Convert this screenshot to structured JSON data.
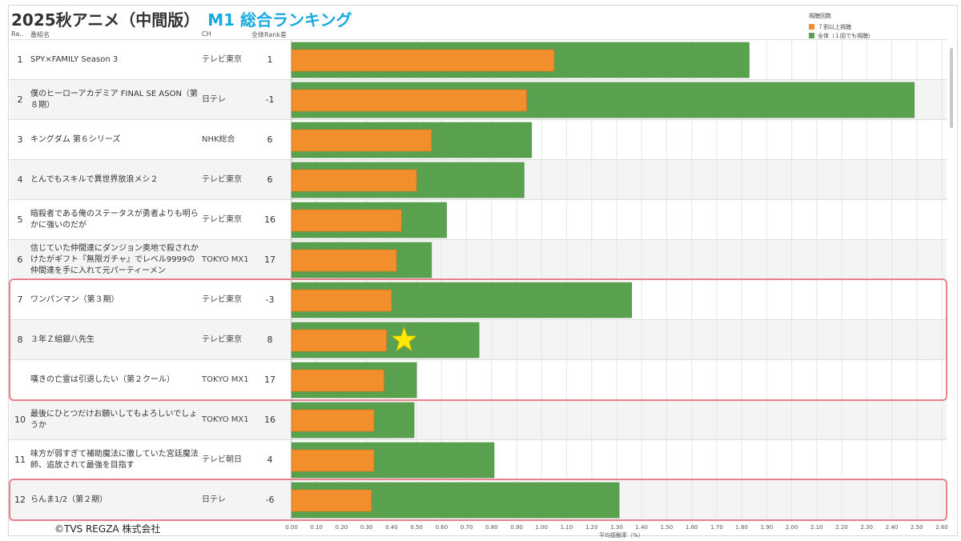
{
  "title": {
    "part1": "2025秋アニメ（中間版）",
    "part2": "M1 総合ランキング"
  },
  "legend": {
    "title": "視聴回数",
    "items": [
      {
        "label": "７割以上視聴",
        "color": "#f28e2b"
      },
      {
        "label": "全体（１回でも視聴）",
        "color": "#59a14f"
      }
    ]
  },
  "headers": {
    "rank": "Ra..",
    "name": "番組名",
    "ch": "CH",
    "diff": "全体Rank差"
  },
  "rows": [
    {
      "rank": "1",
      "name": "SPY×FAMILY Season 3",
      "ch": "テレビ東京",
      "diff": "1"
    },
    {
      "rank": "2",
      "name": "僕のヒーローアカデミア FINAL SE ASON（第８期）",
      "ch": "日テレ",
      "diff": "-1"
    },
    {
      "rank": "3",
      "name": "キングダム 第６シリーズ",
      "ch": "NHK総合",
      "diff": "6"
    },
    {
      "rank": "4",
      "name": "とんでもスキルで異世界放浪メシ２",
      "ch": "テレビ東京",
      "diff": "6"
    },
    {
      "rank": "5",
      "name": "暗殺者である俺のステータスが勇者よりも明らかに強いのだが",
      "ch": "テレビ東京",
      "diff": "16"
    },
    {
      "rank": "6",
      "name": "信じていた仲間達にダンジョン奥地で殺されかけたがギフト『無限ガチャ』でレベル9999の仲間達を手に入れて元パーティーメン",
      "ch": "TOKYO MX1",
      "diff": "17"
    },
    {
      "rank": "7",
      "name": "ワンパンマン（第３期）",
      "ch": "テレビ東京",
      "diff": "-3"
    },
    {
      "rank": "8",
      "name": "３年Ｚ組銀八先生",
      "ch": "テレビ東京",
      "diff": "8"
    },
    {
      "rank": "",
      "name": "嘆きの亡霊は引退したい（第２クール）",
      "ch": "TOKYO MX1",
      "diff": "17"
    },
    {
      "rank": "10",
      "name": "最後にひとつだけお願いしてもよろしいでしょうか",
      "ch": "TOKYO MX1",
      "diff": "16"
    },
    {
      "rank": "11",
      "name": "味方が弱すぎて補助魔法に徹していた宮廷魔法師、追放されて最強を目指す",
      "ch": "テレビ朝日",
      "diff": "4"
    },
    {
      "rank": "12",
      "name": "らんま1/2（第２期）",
      "ch": "日テレ",
      "diff": "-6"
    }
  ],
  "chart_data": {
    "type": "bar",
    "title": "2025秋アニメ（中間版） M1 総合ランキング",
    "xlabel": "平均接触率（%）",
    "ylabel": "",
    "orientation": "horizontal",
    "xlim": [
      0,
      2.6
    ],
    "ticks": [
      "0.00",
      "0.10",
      "0.20",
      "0.30",
      "0.40",
      "0.50",
      "0.60",
      "0.70",
      "0.80",
      "0.90",
      "1.00",
      "1.10",
      "1.20",
      "1.30",
      "1.40",
      "1.50",
      "1.60",
      "1.70",
      "1.80",
      "1.90",
      "2.00",
      "2.10",
      "2.20",
      "2.30",
      "2.40",
      "2.50",
      "2.60"
    ],
    "categories": [
      "SPY×FAMILY Season 3",
      "僕のヒーローアカデミア FINAL SEASON（第８期）",
      "キングダム 第６シリーズ",
      "とんでもスキルで異世界放浪メシ２",
      "暗殺者である俺のステータスが勇者よりも明らかに強いのだが",
      "信じていた仲間達にダンジョン奥地で殺されかけたが…",
      "ワンパンマン（第３期）",
      "３年Ｚ組銀八先生",
      "嘆きの亡霊は引退したい（第２クール）",
      "最後にひとつだけお願いしてもよろしいでしょうか",
      "味方が弱すぎて補助魔法に徹していた宮廷魔法師、追放されて最強を目指す",
      "らんま1/2（第２期）"
    ],
    "series": [
      {
        "name": "全体（１回でも視聴）",
        "color": "#59a14f",
        "values": [
          1.83,
          2.49,
          0.96,
          0.93,
          0.62,
          0.56,
          1.36,
          0.75,
          0.5,
          0.49,
          0.81,
          1.31
        ]
      },
      {
        "name": "７割以上視聴",
        "color": "#f28e2b",
        "values": [
          1.05,
          0.94,
          0.56,
          0.5,
          0.44,
          0.42,
          0.4,
          0.38,
          0.37,
          0.33,
          0.33,
          0.32
        ]
      }
    ],
    "grid": true,
    "legend_position": "top-right",
    "annotations": [
      {
        "type": "star",
        "row": 8
      }
    ]
  },
  "highlights": [
    {
      "rows": [
        7,
        9
      ]
    },
    {
      "rows": [
        12,
        12
      ]
    }
  ],
  "footer": {
    "copyright": "©TVS REGZA 株式会社"
  }
}
